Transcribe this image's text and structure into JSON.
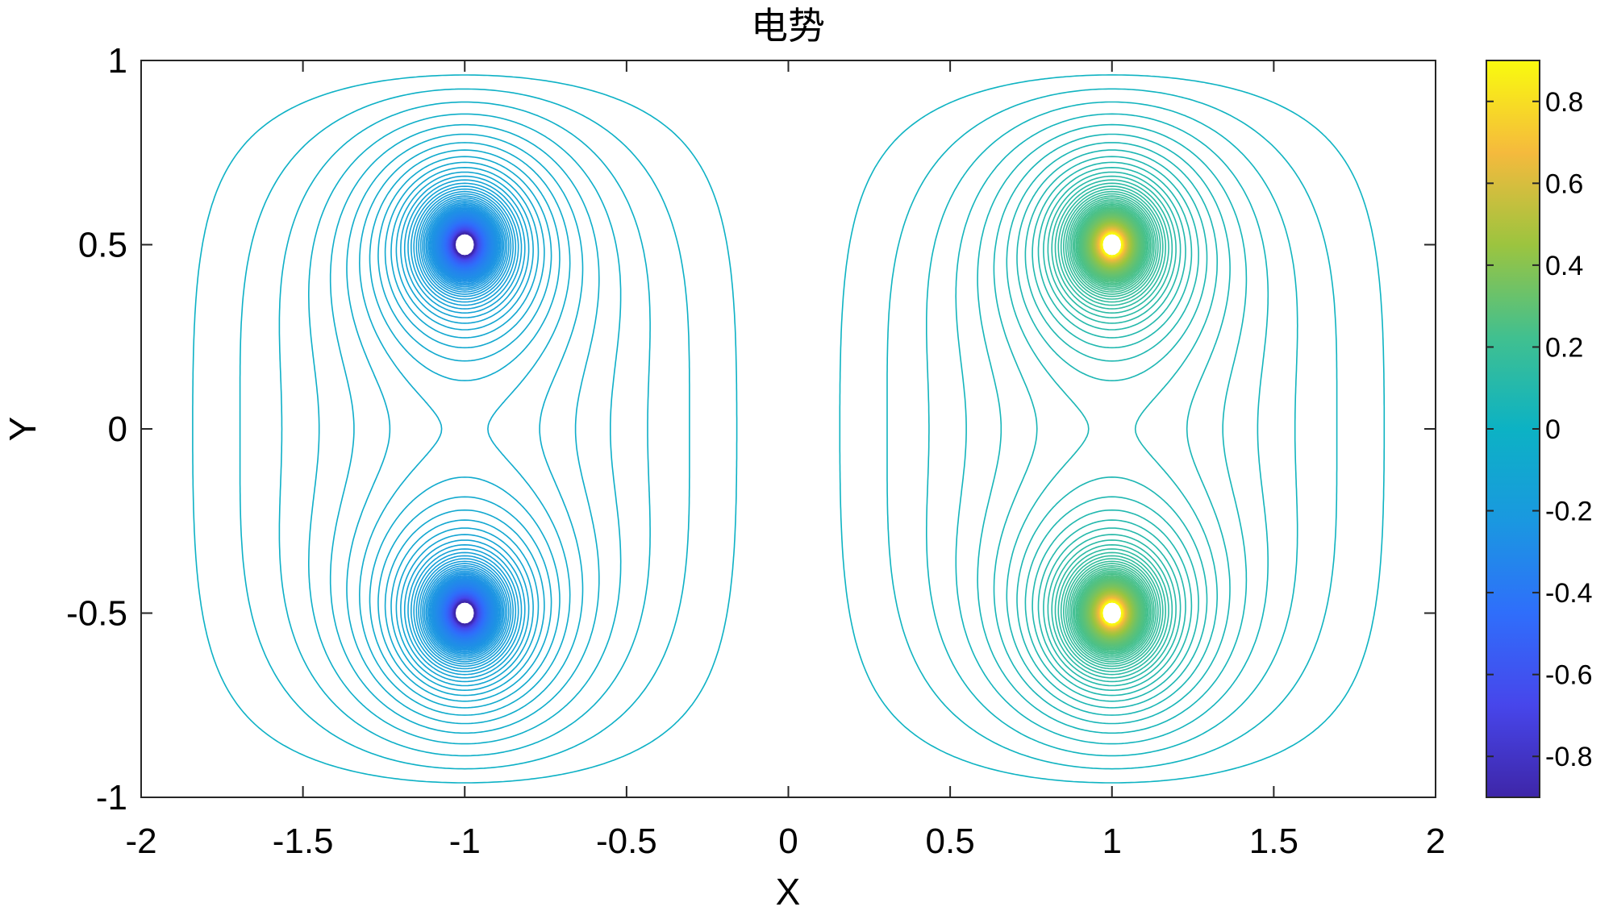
{
  "chart_data": {
    "type": "contour",
    "title": "电势",
    "xlabel": "X",
    "ylabel": "Y",
    "xlim": [
      -2,
      2
    ],
    "ylim": [
      -1,
      1
    ],
    "xticks": [
      -2,
      -1.5,
      -1,
      -0.5,
      0,
      0.5,
      1,
      1.5,
      2
    ],
    "xtick_labels": [
      "-2",
      "-1.5",
      "-1",
      "-0.5",
      "0",
      "0.5",
      "1",
      "1.5",
      "2"
    ],
    "yticks": [
      -1,
      -0.5,
      0,
      0.5,
      1
    ],
    "ytick_labels": [
      "-1",
      "-0.5",
      "0",
      "0.5",
      "1"
    ],
    "colorbar": {
      "range": [
        -0.9,
        0.9
      ],
      "ticks": [
        -0.8,
        -0.6,
        -0.4,
        -0.2,
        0,
        0.2,
        0.4,
        0.6,
        0.8
      ],
      "tick_labels": [
        "-0.8",
        "-0.6",
        "-0.4",
        "-0.2",
        "0",
        "0.2",
        "0.4",
        "0.6",
        "0.8"
      ],
      "colormap": "parula"
    },
    "charges": [
      {
        "x": -1,
        "y": 0.5,
        "sign": -1
      },
      {
        "x": -1,
        "y": -0.5,
        "sign": -1
      },
      {
        "x": 1,
        "y": 0.5,
        "sign": 1
      },
      {
        "x": 1,
        "y": -0.5,
        "sign": 1
      }
    ],
    "grid": false,
    "box": true
  }
}
